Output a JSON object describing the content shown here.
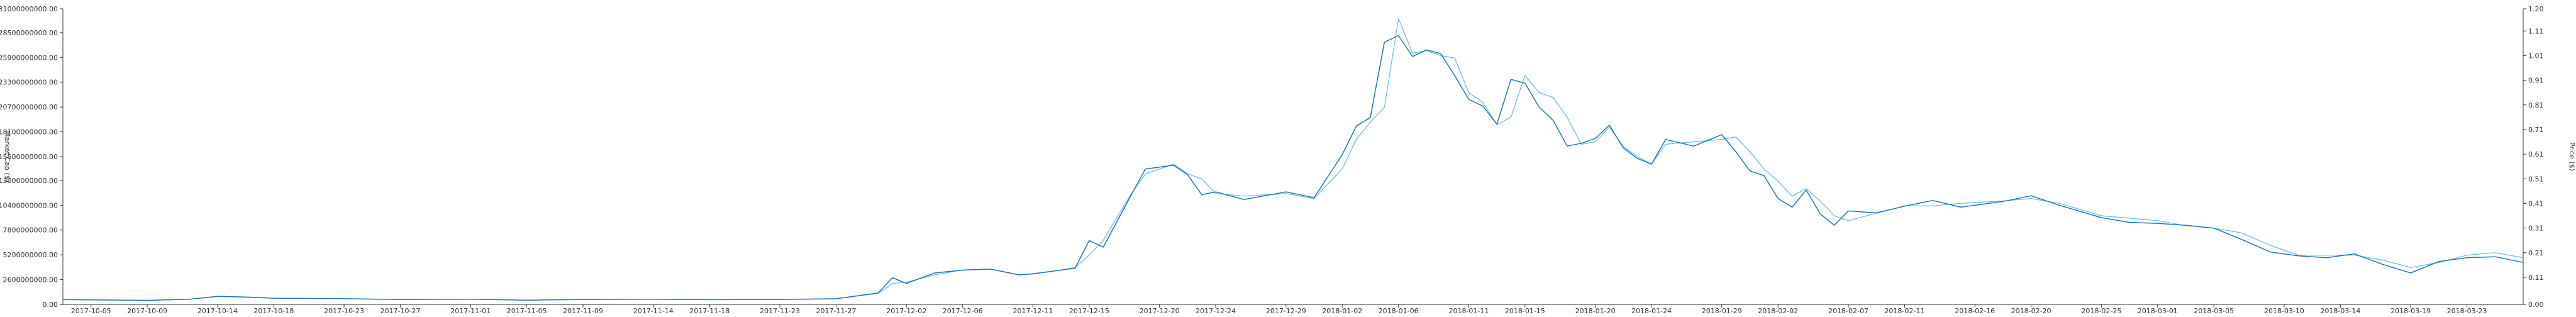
{
  "chart_data": {
    "type": "line",
    "title": "",
    "xlabel": "",
    "ylabel_left": "Market Cap ($)",
    "ylabel_right": "Price ($)",
    "grid": false,
    "legend": "none",
    "colors": {
      "market_cap": "#1f77b4",
      "price": "#63b7e6",
      "axis": "#333333"
    },
    "y_left_ticks": [
      "0.00",
      "2600000000.00",
      "5200000000.00",
      "7800000000.00",
      "10400000000.00",
      "13000000000.00",
      "15500000000.00",
      "18100000000.00",
      "20700000000.00",
      "23300000000.00",
      "25900000000.00",
      "28500000000.00",
      "31000000000.00"
    ],
    "y_left_lim": [
      0,
      31000000000
    ],
    "y_right_ticks": [
      "0.00",
      "0.11",
      "0.21",
      "0.31",
      "0.41",
      "0.51",
      "0.61",
      "0.71",
      "0.81",
      "0.91",
      "1.01",
      "1.11",
      "1.20"
    ],
    "y_right_lim": [
      0,
      1.2
    ],
    "x_ticks": [
      "2017-10-05",
      "2017-10-09",
      "2017-10-14",
      "2017-10-18",
      "2017-10-23",
      "2017-10-27",
      "2017-11-01",
      "2017-11-05",
      "2017-11-09",
      "2017-11-14",
      "2017-11-18",
      "2017-11-23",
      "2017-11-27",
      "2017-12-02",
      "2017-12-06",
      "2017-12-11",
      "2017-12-15",
      "2017-12-20",
      "2017-12-24",
      "2017-12-29",
      "2018-01-02",
      "2018-01-06",
      "2018-01-11",
      "2018-01-15",
      "2018-01-20",
      "2018-01-24",
      "2018-01-29",
      "2018-02-02",
      "2018-02-07",
      "2018-02-11",
      "2018-02-16",
      "2018-02-20",
      "2018-02-25",
      "2018-03-01",
      "2018-03-05",
      "2018-03-10",
      "2018-03-14",
      "2018-03-19",
      "2018-03-23"
    ],
    "series": [
      {
        "name": "Market Cap ($)",
        "axis": "left",
        "points": [
          [
            "2017-10-03",
            500000000
          ],
          [
            "2017-10-05",
            480000000
          ],
          [
            "2017-10-09",
            430000000
          ],
          [
            "2017-10-12",
            550000000
          ],
          [
            "2017-10-14",
            850000000
          ],
          [
            "2017-10-16",
            780000000
          ],
          [
            "2017-10-18",
            650000000
          ],
          [
            "2017-10-23",
            600000000
          ],
          [
            "2017-10-27",
            520000000
          ],
          [
            "2017-11-01",
            540000000
          ],
          [
            "2017-11-05",
            450000000
          ],
          [
            "2017-11-09",
            520000000
          ],
          [
            "2017-11-14",
            550000000
          ],
          [
            "2017-11-18",
            500000000
          ],
          [
            "2017-11-23",
            520000000
          ],
          [
            "2017-11-27",
            600000000
          ],
          [
            "2017-11-30",
            1200000000
          ],
          [
            "2017-12-01",
            2800000000
          ],
          [
            "2017-12-02",
            2200000000
          ],
          [
            "2017-12-04",
            3300000000
          ],
          [
            "2017-12-06",
            3600000000
          ],
          [
            "2017-12-08",
            3700000000
          ],
          [
            "2017-12-10",
            3100000000
          ],
          [
            "2017-12-11",
            3200000000
          ],
          [
            "2017-12-13",
            3600000000
          ],
          [
            "2017-12-14",
            3800000000
          ],
          [
            "2017-12-15",
            6700000000
          ],
          [
            "2017-12-16",
            6000000000
          ],
          [
            "2017-12-18",
            11500000000
          ],
          [
            "2017-12-19",
            14200000000
          ],
          [
            "2017-12-21",
            14600000000
          ],
          [
            "2017-12-22",
            13600000000
          ],
          [
            "2017-12-23",
            11500000000
          ],
          [
            "2017-12-24",
            11800000000
          ],
          [
            "2017-12-26",
            11000000000
          ],
          [
            "2017-12-29",
            11800000000
          ],
          [
            "2017-12-31",
            11200000000
          ],
          [
            "2018-01-02",
            15700000000
          ],
          [
            "2018-01-03",
            18700000000
          ],
          [
            "2018-01-04",
            19600000000
          ],
          [
            "2018-01-05",
            27500000000
          ],
          [
            "2018-01-06",
            28200000000
          ],
          [
            "2018-01-07",
            26000000000
          ],
          [
            "2018-01-08",
            26700000000
          ],
          [
            "2018-01-09",
            26300000000
          ],
          [
            "2018-01-10",
            24000000000
          ],
          [
            "2018-01-11",
            21500000000
          ],
          [
            "2018-01-12",
            20800000000
          ],
          [
            "2018-01-13",
            18900000000
          ],
          [
            "2018-01-14",
            23600000000
          ],
          [
            "2018-01-15",
            23200000000
          ],
          [
            "2018-01-16",
            20700000000
          ],
          [
            "2018-01-17",
            19300000000
          ],
          [
            "2018-01-18",
            16600000000
          ],
          [
            "2018-01-19",
            16900000000
          ],
          [
            "2018-01-20",
            17400000000
          ],
          [
            "2018-01-21",
            18800000000
          ],
          [
            "2018-01-22",
            16400000000
          ],
          [
            "2018-01-23",
            15300000000
          ],
          [
            "2018-01-24",
            14700000000
          ],
          [
            "2018-01-25",
            17300000000
          ],
          [
            "2018-01-27",
            16600000000
          ],
          [
            "2018-01-29",
            17800000000
          ],
          [
            "2018-01-30",
            16000000000
          ],
          [
            "2018-01-31",
            14000000000
          ],
          [
            "2018-02-01",
            13500000000
          ],
          [
            "2018-02-02",
            11100000000
          ],
          [
            "2018-02-03",
            10200000000
          ],
          [
            "2018-02-04",
            12000000000
          ],
          [
            "2018-02-05",
            9500000000
          ],
          [
            "2018-02-06",
            8300000000
          ],
          [
            "2018-02-07",
            9800000000
          ],
          [
            "2018-02-09",
            9600000000
          ],
          [
            "2018-02-11",
            10300000000
          ],
          [
            "2018-02-13",
            10900000000
          ],
          [
            "2018-02-15",
            10200000000
          ],
          [
            "2018-02-18",
            10800000000
          ],
          [
            "2018-02-20",
            11400000000
          ],
          [
            "2018-02-22",
            10400000000
          ],
          [
            "2018-02-25",
            9100000000
          ],
          [
            "2018-02-27",
            8600000000
          ],
          [
            "2018-03-01",
            8500000000
          ],
          [
            "2018-03-03",
            8300000000
          ],
          [
            "2018-03-05",
            8000000000
          ],
          [
            "2018-03-07",
            6800000000
          ],
          [
            "2018-03-09",
            5500000000
          ],
          [
            "2018-03-11",
            5100000000
          ],
          [
            "2018-03-13",
            4900000000
          ],
          [
            "2018-03-15",
            5300000000
          ],
          [
            "2018-03-17",
            4200000000
          ],
          [
            "2018-03-19",
            3300000000
          ],
          [
            "2018-03-21",
            4500000000
          ],
          [
            "2018-03-23",
            4900000000
          ],
          [
            "2018-03-25",
            5000000000
          ],
          [
            "2018-03-27",
            4400000000
          ]
        ]
      },
      {
        "name": "Price ($)",
        "axis": "right",
        "points": [
          [
            "2017-10-03",
            0.02
          ],
          [
            "2017-10-05",
            0.019
          ],
          [
            "2017-10-09",
            0.016
          ],
          [
            "2017-10-12",
            0.021
          ],
          [
            "2017-10-14",
            0.032
          ],
          [
            "2017-10-16",
            0.029
          ],
          [
            "2017-10-18",
            0.025
          ],
          [
            "2017-10-23",
            0.023
          ],
          [
            "2017-10-27",
            0.02
          ],
          [
            "2017-11-01",
            0.021
          ],
          [
            "2017-11-05",
            0.017
          ],
          [
            "2017-11-09",
            0.02
          ],
          [
            "2017-11-14",
            0.021
          ],
          [
            "2017-11-18",
            0.019
          ],
          [
            "2017-11-23",
            0.02
          ],
          [
            "2017-11-27",
            0.023
          ],
          [
            "2017-11-30",
            0.045
          ],
          [
            "2017-12-01",
            0.085
          ],
          [
            "2017-12-02",
            0.09
          ],
          [
            "2017-12-04",
            0.12
          ],
          [
            "2017-12-06",
            0.14
          ],
          [
            "2017-12-08",
            0.143
          ],
          [
            "2017-12-10",
            0.12
          ],
          [
            "2017-12-11",
            0.125
          ],
          [
            "2017-12-13",
            0.14
          ],
          [
            "2017-12-14",
            0.15
          ],
          [
            "2017-12-15",
            0.2
          ],
          [
            "2017-12-16",
            0.26
          ],
          [
            "2017-12-18",
            0.45
          ],
          [
            "2017-12-19",
            0.53
          ],
          [
            "2017-12-21",
            0.57
          ],
          [
            "2017-12-22",
            0.53
          ],
          [
            "2017-12-23",
            0.51
          ],
          [
            "2017-12-24",
            0.45
          ],
          [
            "2017-12-26",
            0.44
          ],
          [
            "2017-12-29",
            0.45
          ],
          [
            "2017-12-31",
            0.43
          ],
          [
            "2018-01-02",
            0.55
          ],
          [
            "2018-01-03",
            0.67
          ],
          [
            "2018-01-04",
            0.74
          ],
          [
            "2018-01-05",
            0.8
          ],
          [
            "2018-01-06",
            1.16
          ],
          [
            "2018-01-07",
            1.02
          ],
          [
            "2018-01-08",
            1.03
          ],
          [
            "2018-01-09",
            1.01
          ],
          [
            "2018-01-10",
            1.0
          ],
          [
            "2018-01-11",
            0.86
          ],
          [
            "2018-01-12",
            0.82
          ],
          [
            "2018-01-13",
            0.73
          ],
          [
            "2018-01-14",
            0.76
          ],
          [
            "2018-01-15",
            0.93
          ],
          [
            "2018-01-16",
            0.86
          ],
          [
            "2018-01-17",
            0.84
          ],
          [
            "2018-01-18",
            0.76
          ],
          [
            "2018-01-19",
            0.65
          ],
          [
            "2018-01-20",
            0.66
          ],
          [
            "2018-01-21",
            0.72
          ],
          [
            "2018-01-22",
            0.64
          ],
          [
            "2018-01-23",
            0.6
          ],
          [
            "2018-01-24",
            0.57
          ],
          [
            "2018-01-25",
            0.65
          ],
          [
            "2018-01-27",
            0.66
          ],
          [
            "2018-01-29",
            0.67
          ],
          [
            "2018-01-30",
            0.68
          ],
          [
            "2018-01-31",
            0.62
          ],
          [
            "2018-02-01",
            0.55
          ],
          [
            "2018-02-02",
            0.5
          ],
          [
            "2018-02-03",
            0.44
          ],
          [
            "2018-02-04",
            0.47
          ],
          [
            "2018-02-05",
            0.42
          ],
          [
            "2018-02-06",
            0.36
          ],
          [
            "2018-02-07",
            0.34
          ],
          [
            "2018-02-09",
            0.37
          ],
          [
            "2018-02-11",
            0.4
          ],
          [
            "2018-02-13",
            0.4
          ],
          [
            "2018-02-15",
            0.41
          ],
          [
            "2018-02-18",
            0.42
          ],
          [
            "2018-02-20",
            0.43
          ],
          [
            "2018-02-22",
            0.41
          ],
          [
            "2018-02-25",
            0.36
          ],
          [
            "2018-02-27",
            0.35
          ],
          [
            "2018-03-01",
            0.34
          ],
          [
            "2018-03-03",
            0.32
          ],
          [
            "2018-03-05",
            0.31
          ],
          [
            "2018-03-07",
            0.29
          ],
          [
            "2018-03-09",
            0.24
          ],
          [
            "2018-03-11",
            0.2
          ],
          [
            "2018-03-13",
            0.2
          ],
          [
            "2018-03-15",
            0.2
          ],
          [
            "2018-03-17",
            0.18
          ],
          [
            "2018-03-19",
            0.15
          ],
          [
            "2018-03-21",
            0.17
          ],
          [
            "2018-03-23",
            0.2
          ],
          [
            "2018-03-25",
            0.21
          ],
          [
            "2018-03-27",
            0.19
          ]
        ]
      }
    ]
  }
}
